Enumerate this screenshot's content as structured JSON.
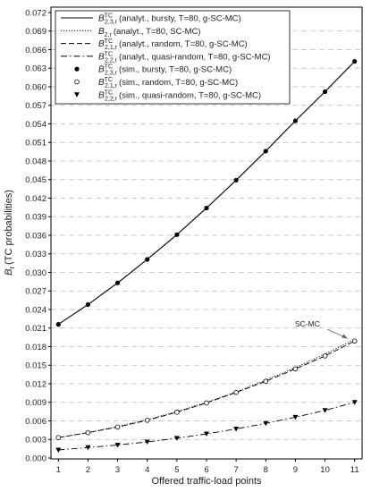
{
  "chart_data": {
    "type": "line",
    "ylabel_symbol": "B",
    "ylabel_sub": "r",
    "ylabel": "(TC probabilities)",
    "xlabel": "Offered traffic-load points",
    "annotation": "SC-MC",
    "x": [
      1,
      2,
      3,
      4,
      5,
      6,
      7,
      8,
      9,
      10,
      11
    ],
    "xlim": [
      0.75,
      11.25
    ],
    "xticks": [
      1,
      2,
      3,
      4,
      5,
      6,
      7,
      8,
      9,
      10,
      11
    ],
    "ylim": [
      0,
      0.072
    ],
    "yticks": [
      {
        "value": 0,
        "label": "0.000"
      },
      {
        "value": 0.003,
        "label": "0.003"
      },
      {
        "value": 0.006,
        "label": "0.006"
      },
      {
        "value": 0.009,
        "label": "0.009"
      },
      {
        "value": 0.012,
        "label": "0.012"
      },
      {
        "value": 0.015,
        "label": "0.015"
      },
      {
        "value": 0.018,
        "label": "0.018"
      },
      {
        "value": 0.021,
        "label": "0.021"
      },
      {
        "value": 0.024,
        "label": "0.024"
      },
      {
        "value": 0.027,
        "label": "0.027"
      },
      {
        "value": 0.03,
        "label": "0.030"
      },
      {
        "value": 0.033,
        "label": "0.033"
      },
      {
        "value": 0.036,
        "label": "0.036"
      },
      {
        "value": 0.039,
        "label": "0.039"
      },
      {
        "value": 0.042,
        "label": "0.042"
      },
      {
        "value": 0.045,
        "label": "0.045"
      },
      {
        "value": 0.048,
        "label": "0.048"
      },
      {
        "value": 0.051,
        "label": "0.051"
      },
      {
        "value": 0.054,
        "label": "0.054"
      },
      {
        "value": 0.057,
        "label": "0.057"
      },
      {
        "value": 0.06,
        "label": "0.060"
      },
      {
        "value": 0.063,
        "label": "0.063"
      },
      {
        "value": 0.066,
        "label": "0.066"
      },
      {
        "value": 0.069,
        "label": "0.069"
      },
      {
        "value": 0.072,
        "label": "0.072"
      }
    ],
    "grid": true,
    "legend": "upper left",
    "series": [
      {
        "name_symbol": "B",
        "name_sup": "TC",
        "name_sub": "2,3,r",
        "name": "(analyt., bursty, T=80, g-SC-MC)",
        "color": "#000000",
        "linestyle": "solid",
        "marker": "none",
        "values": [
          0.0216,
          0.0248,
          0.0283,
          0.0321,
          0.0361,
          0.0404,
          0.0449,
          0.0496,
          0.0545,
          0.0592,
          0.0641
        ]
      },
      {
        "name_symbol": "B",
        "name_sup": "",
        "name_sub": "2,r",
        "name": "(analyt., T=80, SC-MC)",
        "color": "#000000",
        "linestyle": "dotted",
        "marker": "none",
        "values": [
          0.0033,
          0.0041,
          0.0051,
          0.0062,
          0.0075,
          0.009,
          0.0107,
          0.0126,
          0.0146,
          0.0168,
          0.0192
        ]
      },
      {
        "name_symbol": "B",
        "name_sup": "TC",
        "name_sub": "2,1,r",
        "name": "(analyt., random, T=80, g-SC-MC)",
        "color": "#000000",
        "linestyle": "dashed",
        "marker": "none",
        "values": [
          0.0033,
          0.0041,
          0.005,
          0.0061,
          0.0074,
          0.0089,
          0.0106,
          0.0124,
          0.0144,
          0.0165,
          0.0189
        ]
      },
      {
        "name_symbol": "B",
        "name_sup": "TC",
        "name_sub": "2,2,r",
        "name": "(analyt., quasi-random, T=80, g-SC-MC)",
        "color": "#000000",
        "linestyle": "dashdot",
        "marker": "none",
        "values": [
          0.0013,
          0.0017,
          0.0021,
          0.0026,
          0.0032,
          0.0039,
          0.0047,
          0.0056,
          0.0066,
          0.0077,
          0.009
        ]
      },
      {
        "name_symbol": "B",
        "name_sup": "TC",
        "name_sub": "2,3,r",
        "name": "(sim., bursty, T=80, g-SC-MC)",
        "color": "#000000",
        "linestyle": "none",
        "marker": "filled-circle",
        "values": [
          0.0216,
          0.0248,
          0.0283,
          0.0321,
          0.0361,
          0.0404,
          0.0449,
          0.0496,
          0.0545,
          0.0592,
          0.0641
        ]
      },
      {
        "name_symbol": "B",
        "name_sup": "TC",
        "name_sub": "2,1,r",
        "name": "(sim., random, T=80, g-SC-MC)",
        "color": "#000000",
        "linestyle": "none",
        "marker": "open-circle",
        "values": [
          0.0033,
          0.0041,
          0.005,
          0.0061,
          0.0074,
          0.0089,
          0.0106,
          0.0124,
          0.0144,
          0.0165,
          0.0189
        ]
      },
      {
        "name_symbol": "B",
        "name_sup": "TC",
        "name_sub": "2,2,r",
        "name": "(sim., quasi-random, T=80, g-SC-MC)",
        "color": "#000000",
        "linestyle": "none",
        "marker": "triangle-down",
        "values": [
          0.0013,
          0.0017,
          0.0021,
          0.0026,
          0.0032,
          0.0039,
          0.0047,
          0.0056,
          0.0066,
          0.0077,
          0.009
        ]
      }
    ]
  }
}
